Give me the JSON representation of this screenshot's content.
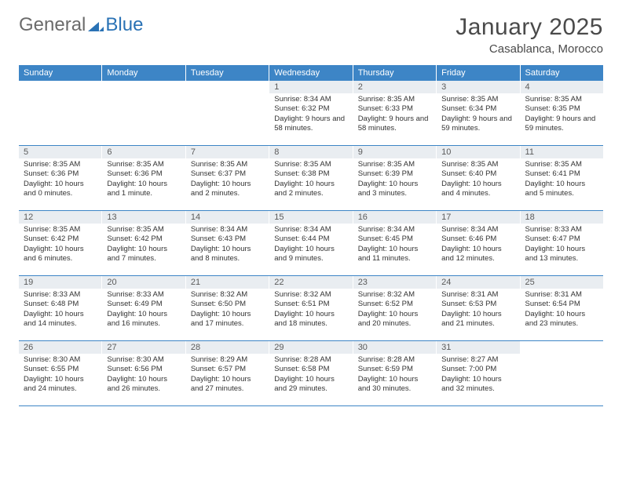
{
  "logo": {
    "word1": "General",
    "word2": "Blue"
  },
  "title": "January 2025",
  "subtitle": "Casablanca, Morocco",
  "colors": {
    "header_bg": "#3d85c6",
    "header_fg": "#ffffff",
    "daynum_bg": "#e9edf1",
    "rule": "#3d85c6",
    "text": "#333333",
    "logo_gray": "#6b6b6b",
    "logo_blue": "#2a72b5"
  },
  "day_headers": [
    "Sunday",
    "Monday",
    "Tuesday",
    "Wednesday",
    "Thursday",
    "Friday",
    "Saturday"
  ],
  "weeks": [
    [
      {
        "n": "",
        "sr": "",
        "ss": "",
        "dl": ""
      },
      {
        "n": "",
        "sr": "",
        "ss": "",
        "dl": ""
      },
      {
        "n": "",
        "sr": "",
        "ss": "",
        "dl": ""
      },
      {
        "n": "1",
        "sr": "Sunrise: 8:34 AM",
        "ss": "Sunset: 6:32 PM",
        "dl": "Daylight: 9 hours and 58 minutes."
      },
      {
        "n": "2",
        "sr": "Sunrise: 8:35 AM",
        "ss": "Sunset: 6:33 PM",
        "dl": "Daylight: 9 hours and 58 minutes."
      },
      {
        "n": "3",
        "sr": "Sunrise: 8:35 AM",
        "ss": "Sunset: 6:34 PM",
        "dl": "Daylight: 9 hours and 59 minutes."
      },
      {
        "n": "4",
        "sr": "Sunrise: 8:35 AM",
        "ss": "Sunset: 6:35 PM",
        "dl": "Daylight: 9 hours and 59 minutes."
      }
    ],
    [
      {
        "n": "5",
        "sr": "Sunrise: 8:35 AM",
        "ss": "Sunset: 6:36 PM",
        "dl": "Daylight: 10 hours and 0 minutes."
      },
      {
        "n": "6",
        "sr": "Sunrise: 8:35 AM",
        "ss": "Sunset: 6:36 PM",
        "dl": "Daylight: 10 hours and 1 minute."
      },
      {
        "n": "7",
        "sr": "Sunrise: 8:35 AM",
        "ss": "Sunset: 6:37 PM",
        "dl": "Daylight: 10 hours and 2 minutes."
      },
      {
        "n": "8",
        "sr": "Sunrise: 8:35 AM",
        "ss": "Sunset: 6:38 PM",
        "dl": "Daylight: 10 hours and 2 minutes."
      },
      {
        "n": "9",
        "sr": "Sunrise: 8:35 AM",
        "ss": "Sunset: 6:39 PM",
        "dl": "Daylight: 10 hours and 3 minutes."
      },
      {
        "n": "10",
        "sr": "Sunrise: 8:35 AM",
        "ss": "Sunset: 6:40 PM",
        "dl": "Daylight: 10 hours and 4 minutes."
      },
      {
        "n": "11",
        "sr": "Sunrise: 8:35 AM",
        "ss": "Sunset: 6:41 PM",
        "dl": "Daylight: 10 hours and 5 minutes."
      }
    ],
    [
      {
        "n": "12",
        "sr": "Sunrise: 8:35 AM",
        "ss": "Sunset: 6:42 PM",
        "dl": "Daylight: 10 hours and 6 minutes."
      },
      {
        "n": "13",
        "sr": "Sunrise: 8:35 AM",
        "ss": "Sunset: 6:42 PM",
        "dl": "Daylight: 10 hours and 7 minutes."
      },
      {
        "n": "14",
        "sr": "Sunrise: 8:34 AM",
        "ss": "Sunset: 6:43 PM",
        "dl": "Daylight: 10 hours and 8 minutes."
      },
      {
        "n": "15",
        "sr": "Sunrise: 8:34 AM",
        "ss": "Sunset: 6:44 PM",
        "dl": "Daylight: 10 hours and 9 minutes."
      },
      {
        "n": "16",
        "sr": "Sunrise: 8:34 AM",
        "ss": "Sunset: 6:45 PM",
        "dl": "Daylight: 10 hours and 11 minutes."
      },
      {
        "n": "17",
        "sr": "Sunrise: 8:34 AM",
        "ss": "Sunset: 6:46 PM",
        "dl": "Daylight: 10 hours and 12 minutes."
      },
      {
        "n": "18",
        "sr": "Sunrise: 8:33 AM",
        "ss": "Sunset: 6:47 PM",
        "dl": "Daylight: 10 hours and 13 minutes."
      }
    ],
    [
      {
        "n": "19",
        "sr": "Sunrise: 8:33 AM",
        "ss": "Sunset: 6:48 PM",
        "dl": "Daylight: 10 hours and 14 minutes."
      },
      {
        "n": "20",
        "sr": "Sunrise: 8:33 AM",
        "ss": "Sunset: 6:49 PM",
        "dl": "Daylight: 10 hours and 16 minutes."
      },
      {
        "n": "21",
        "sr": "Sunrise: 8:32 AM",
        "ss": "Sunset: 6:50 PM",
        "dl": "Daylight: 10 hours and 17 minutes."
      },
      {
        "n": "22",
        "sr": "Sunrise: 8:32 AM",
        "ss": "Sunset: 6:51 PM",
        "dl": "Daylight: 10 hours and 18 minutes."
      },
      {
        "n": "23",
        "sr": "Sunrise: 8:32 AM",
        "ss": "Sunset: 6:52 PM",
        "dl": "Daylight: 10 hours and 20 minutes."
      },
      {
        "n": "24",
        "sr": "Sunrise: 8:31 AM",
        "ss": "Sunset: 6:53 PM",
        "dl": "Daylight: 10 hours and 21 minutes."
      },
      {
        "n": "25",
        "sr": "Sunrise: 8:31 AM",
        "ss": "Sunset: 6:54 PM",
        "dl": "Daylight: 10 hours and 23 minutes."
      }
    ],
    [
      {
        "n": "26",
        "sr": "Sunrise: 8:30 AM",
        "ss": "Sunset: 6:55 PM",
        "dl": "Daylight: 10 hours and 24 minutes."
      },
      {
        "n": "27",
        "sr": "Sunrise: 8:30 AM",
        "ss": "Sunset: 6:56 PM",
        "dl": "Daylight: 10 hours and 26 minutes."
      },
      {
        "n": "28",
        "sr": "Sunrise: 8:29 AM",
        "ss": "Sunset: 6:57 PM",
        "dl": "Daylight: 10 hours and 27 minutes."
      },
      {
        "n": "29",
        "sr": "Sunrise: 8:28 AM",
        "ss": "Sunset: 6:58 PM",
        "dl": "Daylight: 10 hours and 29 minutes."
      },
      {
        "n": "30",
        "sr": "Sunrise: 8:28 AM",
        "ss": "Sunset: 6:59 PM",
        "dl": "Daylight: 10 hours and 30 minutes."
      },
      {
        "n": "31",
        "sr": "Sunrise: 8:27 AM",
        "ss": "Sunset: 7:00 PM",
        "dl": "Daylight: 10 hours and 32 minutes."
      },
      {
        "n": "",
        "sr": "",
        "ss": "",
        "dl": ""
      }
    ]
  ]
}
